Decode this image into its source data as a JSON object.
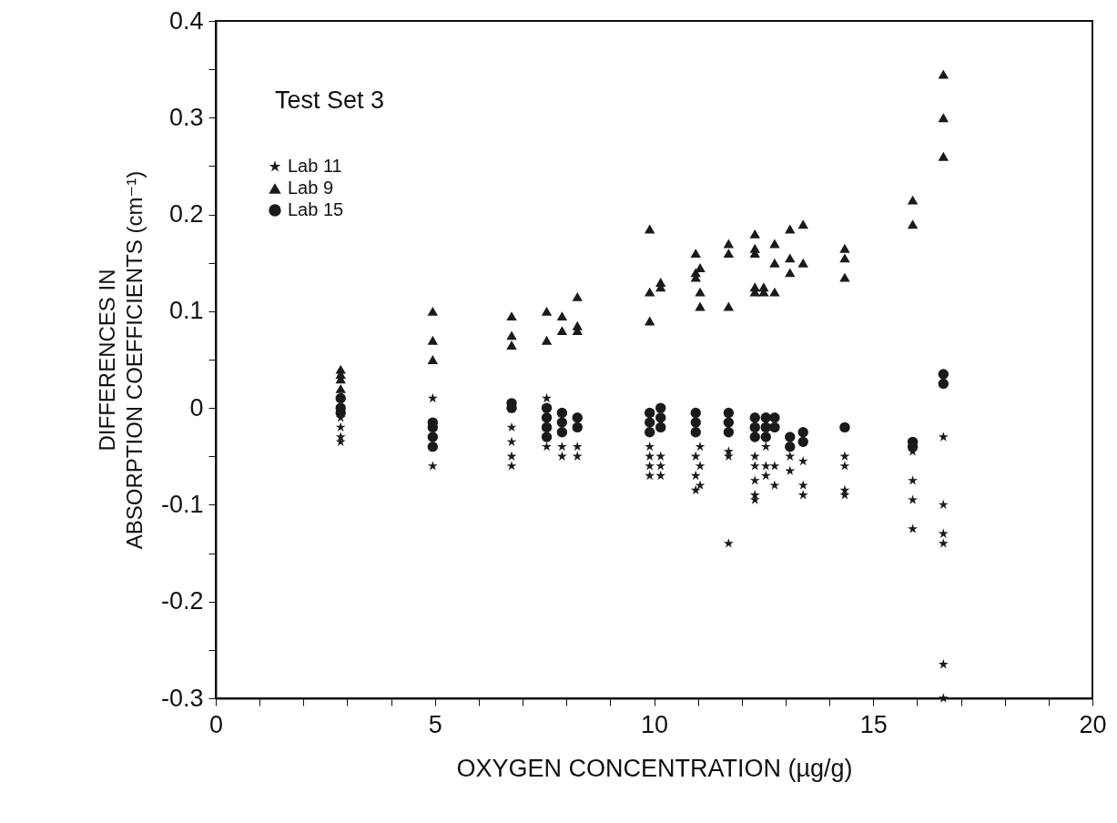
{
  "chart_data": {
    "type": "scatter",
    "title": "Test Set 3",
    "xlabel": "OXYGEN CONCENTRATION (µg/g)",
    "ylabel": "DIFFERENCES IN\nABSORPTION COEFFICIENTS (cm⁻¹)",
    "xlim": [
      0,
      20
    ],
    "ylim": [
      -0.3,
      0.4
    ],
    "xticks": [
      0,
      {
        "value": 1,
        "label": null
      },
      {
        "value": 2,
        "label": null
      },
      {
        "value": 3,
        "label": null
      },
      {
        "value": 4,
        "label": null
      },
      5,
      {
        "value": 6,
        "label": null
      },
      {
        "value": 7,
        "label": null
      },
      {
        "value": 8,
        "label": null
      },
      {
        "value": 9,
        "label": null
      },
      10,
      {
        "value": 11,
        "label": null
      },
      {
        "value": 12,
        "label": null
      },
      {
        "value": 13,
        "label": null
      },
      {
        "value": 14,
        "label": null
      },
      15,
      {
        "value": 16,
        "label": null
      },
      {
        "value": 17,
        "label": null
      },
      {
        "value": 18,
        "label": null
      },
      {
        "value": 19,
        "label": null
      },
      20
    ],
    "yticks": [
      -0.3,
      {
        "value": -0.25,
        "label": null
      },
      -0.2,
      {
        "value": -0.15,
        "label": null
      },
      -0.1,
      {
        "value": -0.05,
        "label": null
      },
      0,
      {
        "value": 0.05,
        "label": null
      },
      0.1,
      {
        "value": 0.15,
        "label": null
      },
      0.2,
      {
        "value": 0.25,
        "label": null
      },
      0.3,
      {
        "value": 0.35,
        "label": null
      },
      0.4
    ],
    "grid": false,
    "legend": "top left",
    "series": [
      {
        "name": "Lab 11",
        "color": "#1a1a1a",
        "marker": "star",
        "x": [
          2.85,
          2.85,
          2.85,
          2.85,
          4.95,
          4.95,
          6.75,
          6.75,
          6.75,
          6.75,
          7.55,
          7.55,
          7.55,
          7.9,
          7.9,
          8.25,
          8.25,
          9.9,
          9.9,
          9.9,
          9.9,
          10.15,
          10.15,
          10.15,
          10.95,
          10.95,
          10.95,
          11.05,
          11.05,
          11.05,
          11.7,
          11.7,
          11.7,
          12.3,
          12.3,
          12.3,
          12.3,
          12.3,
          12.55,
          12.55,
          12.55,
          12.75,
          12.75,
          13.1,
          13.1,
          13.4,
          13.4,
          13.4,
          14.35,
          14.35,
          14.35,
          14.35,
          15.9,
          15.9,
          15.9,
          15.9,
          16.6,
          16.6,
          16.6,
          16.6,
          16.6,
          16.6
        ],
        "values": [
          -0.01,
          -0.02,
          -0.03,
          -0.035,
          0.01,
          -0.06,
          -0.02,
          -0.035,
          -0.05,
          -0.06,
          0.01,
          -0.03,
          -0.04,
          -0.04,
          -0.05,
          -0.04,
          -0.05,
          -0.04,
          -0.05,
          -0.06,
          -0.07,
          -0.05,
          -0.06,
          -0.07,
          -0.05,
          -0.07,
          -0.085,
          -0.04,
          -0.06,
          -0.08,
          -0.045,
          -0.05,
          -0.14,
          -0.05,
          -0.06,
          -0.075,
          -0.09,
          -0.095,
          -0.04,
          -0.06,
          -0.07,
          -0.06,
          -0.08,
          -0.05,
          -0.065,
          -0.055,
          -0.08,
          -0.09,
          -0.05,
          -0.06,
          -0.085,
          -0.09,
          -0.045,
          -0.075,
          -0.095,
          -0.125,
          -0.03,
          -0.1,
          -0.13,
          -0.14,
          -0.265,
          -0.3
        ]
      },
      {
        "name": "Lab 9",
        "color": "#1a1a1a",
        "marker": "triangle",
        "x": [
          2.85,
          2.85,
          2.85,
          2.85,
          4.95,
          4.95,
          4.95,
          6.75,
          6.75,
          6.75,
          7.55,
          7.55,
          7.9,
          7.9,
          8.25,
          8.25,
          8.25,
          9.9,
          9.9,
          9.9,
          10.15,
          10.15,
          10.95,
          10.95,
          10.95,
          11.05,
          11.05,
          11.05,
          11.7,
          11.7,
          11.7,
          12.3,
          12.3,
          12.3,
          12.3,
          12.3,
          12.5,
          12.5,
          12.75,
          12.75,
          12.75,
          13.1,
          13.1,
          13.1,
          13.4,
          13.4,
          14.35,
          14.35,
          14.35,
          15.9,
          15.9,
          16.6,
          16.6,
          16.6
        ],
        "values": [
          0.04,
          0.035,
          0.03,
          0.02,
          0.1,
          0.07,
          0.05,
          0.095,
          0.075,
          0.065,
          0.1,
          0.07,
          0.095,
          0.08,
          0.115,
          0.085,
          0.08,
          0.185,
          0.12,
          0.09,
          0.13,
          0.125,
          0.16,
          0.14,
          0.135,
          0.145,
          0.12,
          0.105,
          0.17,
          0.16,
          0.105,
          0.18,
          0.165,
          0.16,
          0.125,
          0.12,
          0.125,
          0.12,
          0.17,
          0.15,
          0.12,
          0.185,
          0.155,
          0.14,
          0.19,
          0.15,
          0.165,
          0.155,
          0.135,
          0.215,
          0.19,
          0.345,
          0.3,
          0.26
        ]
      },
      {
        "name": "Lab 15",
        "color": "#1a1a1a",
        "marker": "circle",
        "x": [
          2.85,
          2.85,
          2.85,
          4.95,
          4.95,
          4.95,
          4.95,
          6.75,
          6.75,
          7.55,
          7.55,
          7.55,
          7.55,
          7.9,
          7.9,
          7.9,
          8.25,
          8.25,
          9.9,
          9.9,
          9.9,
          10.15,
          10.15,
          10.15,
          10.95,
          10.95,
          10.95,
          11.7,
          11.7,
          11.7,
          12.3,
          12.3,
          12.3,
          12.55,
          12.55,
          12.55,
          12.75,
          12.75,
          13.1,
          13.1,
          13.4,
          13.4,
          14.35,
          15.9,
          15.9,
          16.6,
          16.6
        ],
        "values": [
          0.01,
          0.0,
          -0.005,
          -0.015,
          -0.02,
          -0.03,
          -0.04,
          0.005,
          0.0,
          0.0,
          -0.01,
          -0.02,
          -0.03,
          -0.005,
          -0.015,
          -0.025,
          -0.01,
          -0.02,
          -0.005,
          -0.015,
          -0.025,
          0.0,
          -0.01,
          -0.02,
          -0.005,
          -0.015,
          -0.025,
          -0.005,
          -0.015,
          -0.025,
          -0.01,
          -0.02,
          -0.03,
          -0.01,
          -0.02,
          -0.03,
          -0.01,
          -0.02,
          -0.03,
          -0.04,
          -0.025,
          -0.035,
          -0.02,
          -0.035,
          -0.04,
          0.035,
          0.025
        ]
      }
    ]
  }
}
